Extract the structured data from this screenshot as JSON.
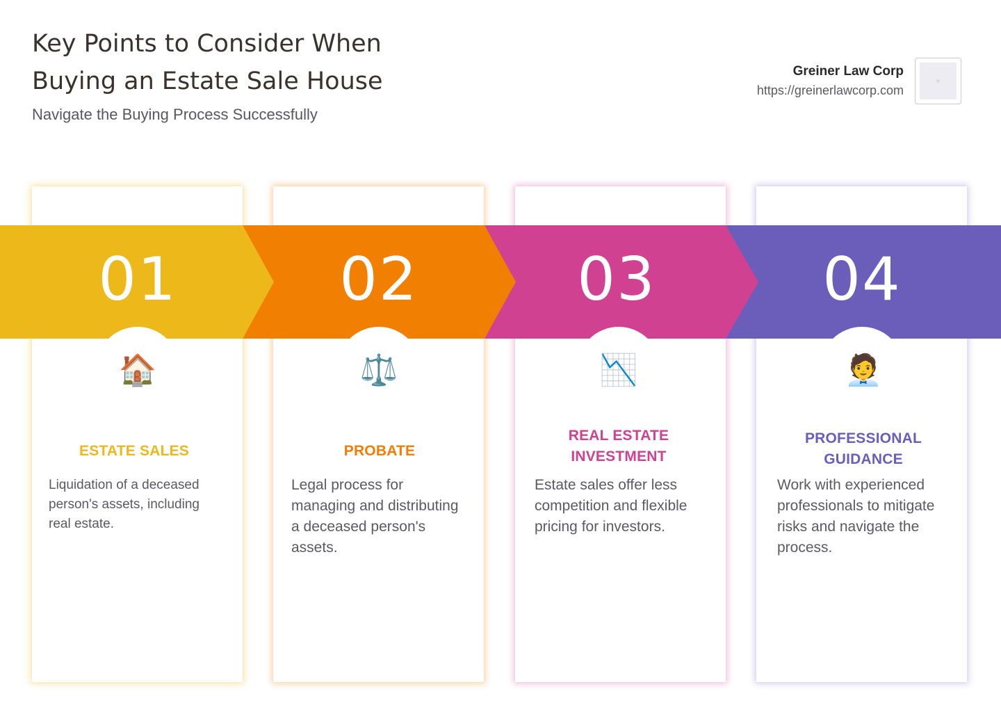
{
  "header": {
    "title": "Key Points to Consider When Buying an Estate Sale House",
    "subtitle": "Navigate the Buying Process Successfully"
  },
  "brand": {
    "name": "Greiner Law Corp",
    "url": "https://greinerlawcorp.com",
    "logo_icon": "logo-placeholder-icon"
  },
  "steps": [
    {
      "number": "01",
      "icon": "house-icon",
      "glyph": "🏠",
      "title": "ESTATE SALES",
      "text": "Liquidation of a deceased person's assets, including real estate.",
      "color": "#ecb81a"
    },
    {
      "number": "02",
      "icon": "scales-icon",
      "glyph": "⚖️",
      "title": "PROBATE",
      "text": "Legal process for managing and distributing a deceased person's assets.",
      "color": "#f07f02"
    },
    {
      "number": "03",
      "icon": "chart-decreasing-icon",
      "glyph": "📉",
      "title": "REAL ESTATE INVESTMENT",
      "text": "Estate sales offer less competition and flexible pricing for investors.",
      "color": "#d04192"
    },
    {
      "number": "04",
      "icon": "professional-person-icon",
      "glyph": "🧑‍💼",
      "title": "PROFESSIONAL GUIDANCE",
      "text": "Work with experienced professionals to mitigate risks and navigate the process.",
      "color": "#6b5ebb"
    }
  ]
}
